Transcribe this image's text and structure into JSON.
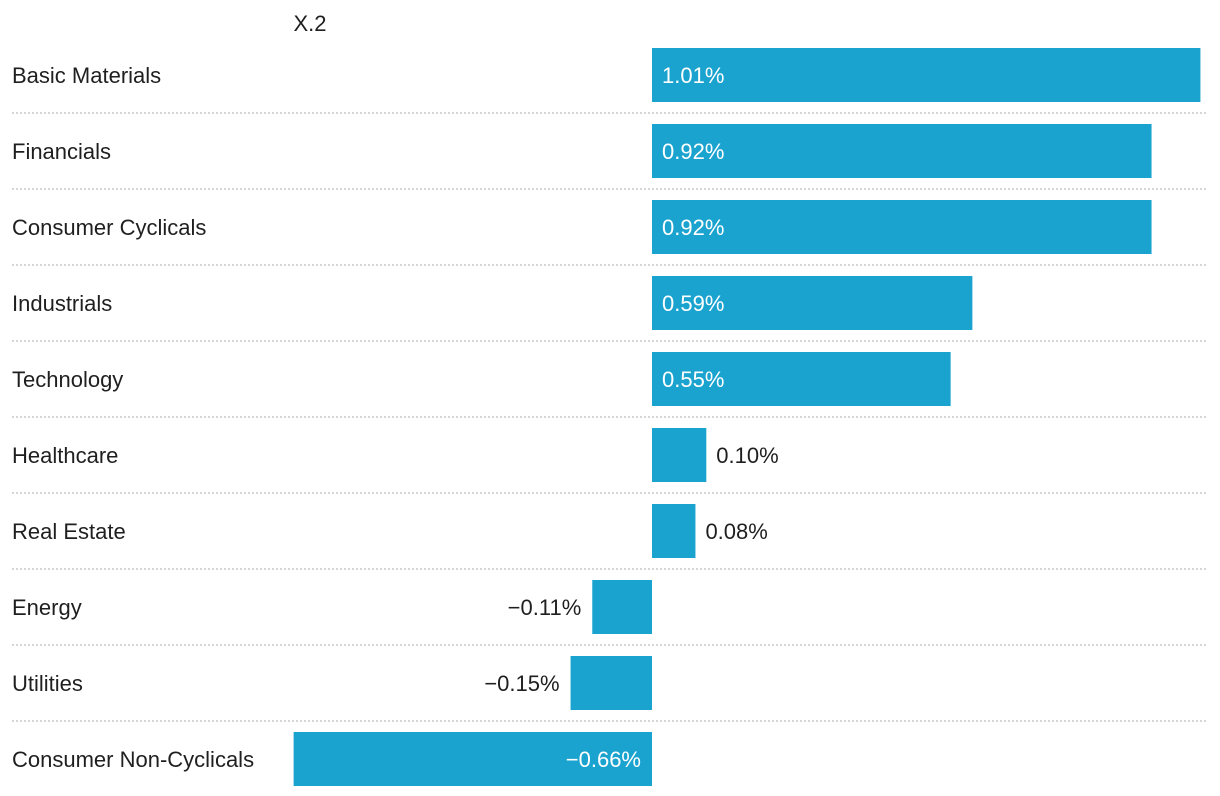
{
  "chart_data": {
    "type": "bar",
    "orientation": "horizontal",
    "header": "X.2",
    "categories": [
      "Basic Materials",
      "Financials",
      "Consumer Cyclicals",
      "Industrials",
      "Technology",
      "Healthcare",
      "Real Estate",
      "Energy",
      "Utilities",
      "Consumer Non-Cyclicals"
    ],
    "values": [
      1.01,
      0.92,
      0.92,
      0.59,
      0.55,
      0.1,
      0.08,
      -0.11,
      -0.15,
      -0.66
    ],
    "value_labels": [
      "1.01%",
      "0.92%",
      "0.92%",
      "0.59%",
      "0.55%",
      "0.10%",
      "0.08%",
      "−0.11%",
      "−0.15%",
      "−0.66%"
    ],
    "xlim": [
      -0.66,
      1.01
    ],
    "grid": "dotted row separators",
    "bar_color": "#1ba3cf",
    "label_inside_color": "#ffffff",
    "label_outside_color": "#1f1f1f",
    "separator_color": "#c8c8c8"
  }
}
